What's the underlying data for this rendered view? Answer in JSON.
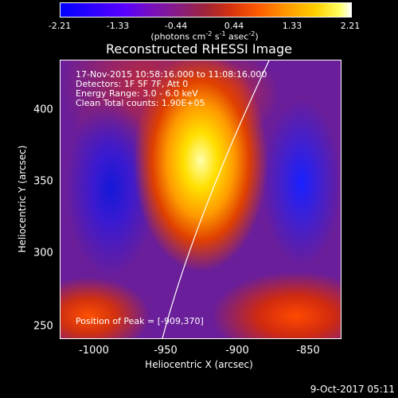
{
  "colorbar": {
    "ticks": [
      "-2.21",
      "-1.33",
      "-0.44",
      "0.44",
      "1.33",
      "2.21"
    ],
    "units_prefix": "(photons cm",
    "units_exp1": "-2",
    "units_mid1": " s",
    "units_exp2": "-1",
    "units_mid2": " asec",
    "units_exp3": "-2",
    "units_suffix": ")"
  },
  "title": "Reconstructed RHESSI Image",
  "info": {
    "line1": "17-Nov-2015 10:58:16.000 to 11:08:16.000",
    "line2": "Detectors: 1F 5F 7F, Att 0",
    "line3": "Energy Range: 3.0 - 6.0 keV",
    "line4": "Clean    Total counts: 1.90E+05",
    "peak": "Position of Peak = [-909,370]"
  },
  "axes": {
    "xlabel": "Heliocentric X (arcsec)",
    "ylabel": "Heliocentric Y (arcsec)",
    "xticks": [
      "-1000",
      "-950",
      "-900",
      "-850"
    ],
    "yticks": [
      "400",
      "350",
      "300",
      "250"
    ]
  },
  "timestamp": "9-Oct-2017 05:11",
  "colors": {
    "background": "#000000",
    "limb_line": "#ffffff"
  }
}
